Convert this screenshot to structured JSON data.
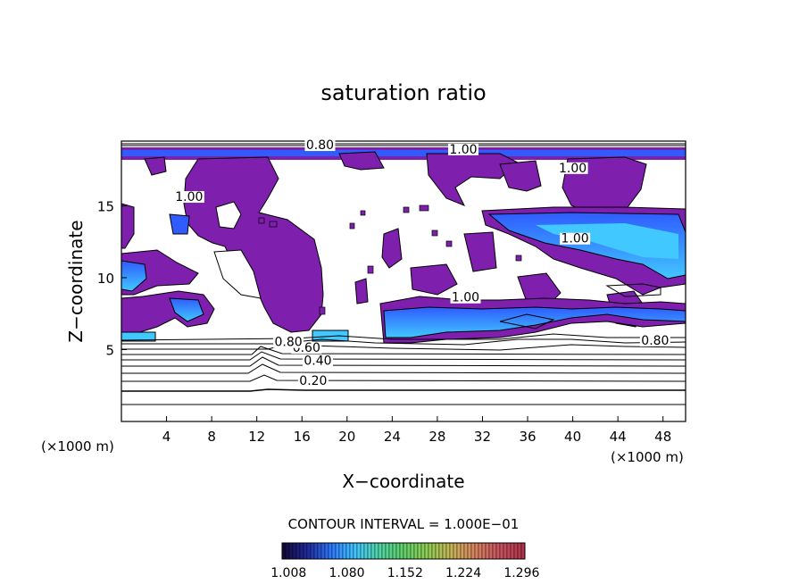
{
  "chart_data": {
    "type": "heatmap",
    "title": "saturation ratio",
    "xlabel": "X−coordinate",
    "ylabel": "Z−coordinate",
    "x_unit_left": "(×1000 m)",
    "x_unit_right": "(×1000 m)",
    "xlim": [
      0,
      50
    ],
    "ylim": [
      0,
      19.5
    ],
    "x_ticks": [
      4,
      8,
      12,
      16,
      20,
      24,
      28,
      32,
      36,
      40,
      44,
      48
    ],
    "y_ticks": [
      5,
      10,
      15
    ],
    "contour_interval_label": "CONTOUR INTERVAL = 1.000E−01",
    "contour_labels": [
      {
        "text": "0.20",
        "x": 17,
        "z": 2.6
      },
      {
        "text": "0.40",
        "x": 17.4,
        "z": 4.0
      },
      {
        "text": "0.60",
        "x": 16.4,
        "z": 4.9
      },
      {
        "text": "0.80",
        "x": 14.8,
        "z": 5.3
      },
      {
        "text": "0.80",
        "x": 47.3,
        "z": 5.4
      },
      {
        "text": "0.80",
        "x": 17.6,
        "z": 19.0
      },
      {
        "text": "1.00",
        "x": 30.5,
        "z": 8.4
      },
      {
        "text": "1.00",
        "x": 30.3,
        "z": 18.7
      },
      {
        "text": "1.00",
        "x": 6.0,
        "z": 15.4
      },
      {
        "text": "1.00",
        "x": 40.0,
        "z": 17.4
      },
      {
        "text": "1.00",
        "x": 40.2,
        "z": 12.5
      }
    ],
    "colorbar": {
      "tick_labels": [
        "1.008",
        "1.080",
        "1.152",
        "1.224",
        "1.296"
      ],
      "tick_values": [
        1.008,
        1.08,
        1.152,
        1.224,
        1.296
      ],
      "range": [
        1.0,
        1.3
      ],
      "colors": [
        "#140a3c",
        "#1f2a9e",
        "#2f7bff",
        "#41c8ff",
        "#4fd6a6",
        "#5fd06a",
        "#8ecf52",
        "#c9b457",
        "#d8835f",
        "#c8535f",
        "#b0334b"
      ]
    },
    "colors": {
      "saturated_region": "#7f1fae",
      "supersaturated_low": "#2f5bff",
      "supersaturated_mid": "#41c8ff",
      "contour_line": "#000000"
    }
  }
}
